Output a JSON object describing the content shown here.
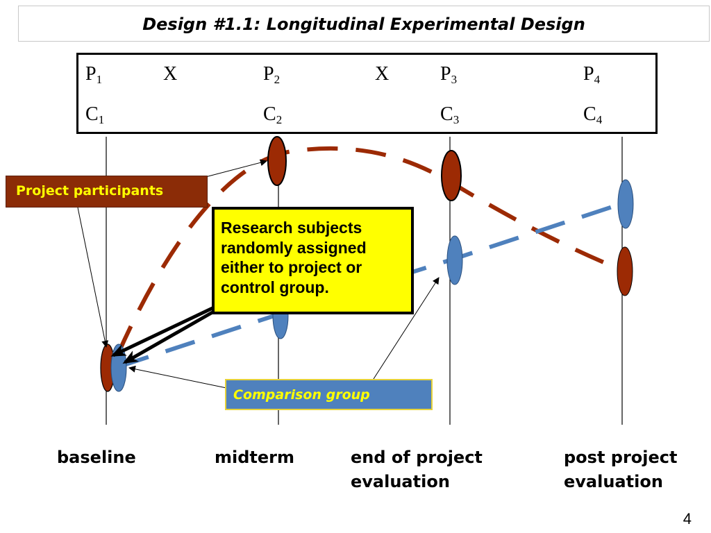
{
  "title": "Design #1.1: Longitudinal Experimental Design",
  "notation": {
    "row1": [
      {
        "base": "P",
        "sub": "1"
      },
      {
        "base": "X",
        "sub": ""
      },
      {
        "base": "P",
        "sub": "2"
      },
      {
        "base": "X",
        "sub": ""
      },
      {
        "base": "P",
        "sub": "3"
      },
      {
        "base": "P",
        "sub": "4"
      }
    ],
    "row2": [
      {
        "base": "C",
        "sub": "1"
      },
      {
        "base": "C",
        "sub": "2"
      },
      {
        "base": "C",
        "sub": "3"
      },
      {
        "base": "C",
        "sub": "4"
      }
    ]
  },
  "labels": {
    "project_participants": "Project participants",
    "research_subjects": "Research subjects randomly assigned either to project or control group.",
    "comparison_group": "Comparison group"
  },
  "timepoints": {
    "baseline": "baseline",
    "midterm": "midterm",
    "end_line1": "end of project",
    "end_line2": "evaluation",
    "post_line1": "post project",
    "post_line2": "evaluation"
  },
  "slide_number": "4",
  "colors": {
    "project": "#9c2a04",
    "comparison": "#4f81bd",
    "highlight": "#ffff00",
    "label_project_bg": "#8b2c07"
  }
}
